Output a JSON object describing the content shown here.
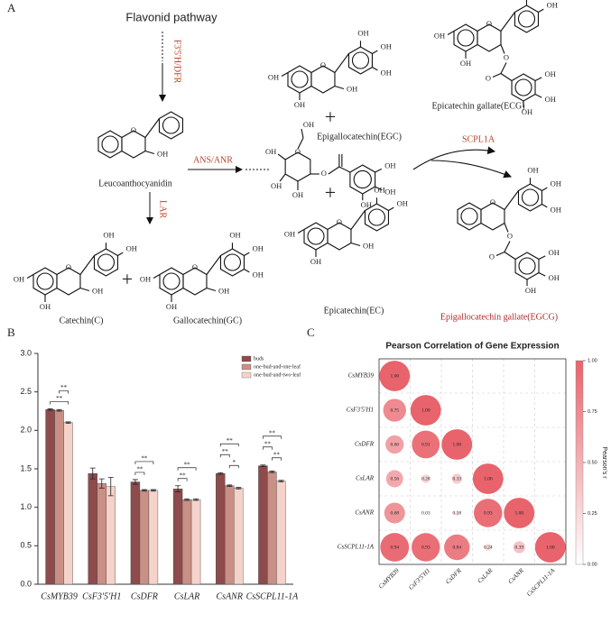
{
  "panel_a": {
    "label": "A",
    "title": "Flavonid pathway",
    "enzymes": {
      "f35h_dfr": "F3'5'H/DFR",
      "ans_anr": "ANS/ANR",
      "lar": "LAR",
      "scpl": "SCPL1A"
    },
    "compounds": {
      "leuco": "Leucoanthocyanidin",
      "c": "Catechin(C)",
      "gc": "Gallocatechin(GC)",
      "egc": "Epigallocatechin(EGC)",
      "ecg": "Epicatechin gallate(ECG)",
      "ec": "Epicatechin(EC)",
      "egcg": "Epigallocatechin gallate(EGCG)"
    },
    "plus": "+",
    "atoms": {
      "oh": "OH",
      "o": "O"
    }
  },
  "chart_data": [
    {
      "type": "bar",
      "panel_label": "B",
      "categories": [
        "CsMYB39",
        "CsF3'5'H1",
        "CsDFR",
        "CsLAR",
        "CsANR",
        "CsSCPL11-1A"
      ],
      "series": [
        {
          "name": "buds",
          "color": "#8e4b4b",
          "values": [
            2.27,
            1.44,
            1.33,
            1.24,
            1.44,
            1.54
          ],
          "errors": [
            0.01,
            0.07,
            0.03,
            0.04,
            0.01,
            0.01
          ]
        },
        {
          "name": "one-bud-and-one-leaf",
          "color": "#c99086",
          "values": [
            2.26,
            1.31,
            1.22,
            1.1,
            1.28,
            1.46
          ],
          "errors": [
            0.01,
            0.06,
            0.01,
            0.01,
            0.01,
            0.01
          ]
        },
        {
          "name": "one-bud-and-two-leaf",
          "color": "#f5d3ca",
          "values": [
            2.1,
            1.27,
            1.22,
            1.1,
            1.25,
            1.34
          ],
          "errors": [
            0.01,
            0.12,
            0.01,
            0.01,
            0.01,
            0.01
          ]
        }
      ],
      "ylim": [
        0,
        3.0
      ],
      "yticks": [
        {
          "value": 0,
          "label": "0.0"
        },
        0.5,
        {
          "value": 1,
          "label": "1.0"
        },
        1.5,
        {
          "value": 2,
          "label": "2.0"
        },
        2.5,
        {
          "value": 3,
          "label": "3.0"
        }
      ],
      "legend": "upper right",
      "annotations": [
        {
          "category": "CsMYB39",
          "from": "buds",
          "to": "one-bud-and-two-leaf",
          "text": "**"
        },
        {
          "category": "CsMYB39",
          "from": "one-bud-and-one-leaf",
          "to": "one-bud-and-two-leaf",
          "text": "**"
        },
        {
          "category": "CsDFR",
          "from": "buds",
          "to": "one-bud-and-one-leaf",
          "text": "**"
        },
        {
          "category": "CsDFR",
          "from": "buds",
          "to": "one-bud-and-two-leaf",
          "text": "**"
        },
        {
          "category": "CsLAR",
          "from": "buds",
          "to": "one-bud-and-one-leaf",
          "text": "**"
        },
        {
          "category": "CsLAR",
          "from": "buds",
          "to": "one-bud-and-two-leaf",
          "text": "**"
        },
        {
          "category": "CsANR",
          "from": "one-bud-and-one-leaf",
          "to": "one-bud-and-two-leaf",
          "text": "*"
        },
        {
          "category": "CsANR",
          "from": "buds",
          "to": "one-bud-and-one-leaf",
          "text": "**"
        },
        {
          "category": "CsANR",
          "from": "buds",
          "to": "one-bud-and-two-leaf",
          "text": "**"
        },
        {
          "category": "CsSCPL11-1A",
          "from": "one-bud-and-one-leaf",
          "to": "one-bud-and-two-leaf",
          "text": "**"
        },
        {
          "category": "CsSCPL11-1A",
          "from": "buds",
          "to": "one-bud-and-one-leaf",
          "text": "**"
        },
        {
          "category": "CsSCPL11-1A",
          "from": "buds",
          "to": "one-bud-and-two-leaf",
          "text": "**"
        }
      ]
    },
    {
      "type": "correlation",
      "panel_label": "C",
      "title": "Pearson Correlation of Gene Expression",
      "categories": [
        "CsMYB39",
        "CsF3'5'H1",
        "CsDFR",
        "CsLAR",
        "CsANR",
        "CsSCPL11-1A"
      ],
      "values": [
        [
          1.0
        ],
        [
          0.75,
          1.0
        ],
        [
          0.6,
          0.91,
          1.0
        ],
        [
          0.56,
          0.28,
          0.33,
          1.0
        ],
        [
          0.68,
          0.03,
          0.18,
          0.93,
          1.0
        ],
        [
          0.94,
          0.93,
          0.84,
          0.24,
          0.39,
          1.0
        ]
      ],
      "value_labels": [
        [
          "1.00"
        ],
        [
          "0.75",
          "1.00"
        ],
        [
          "0.60",
          "0.91",
          "1.00"
        ],
        [
          "0.56",
          "0.28",
          "0.33",
          "1.00"
        ],
        [
          "0.68",
          "0.03",
          "0.18",
          "0.93",
          "1.00"
        ],
        [
          "0.94",
          "0.93",
          "0.84",
          "0.24",
          "0.39",
          "1.00"
        ]
      ],
      "colormap": [
        "#ffffff",
        "#e8636b"
      ],
      "clim": [
        0,
        1
      ],
      "cticks": [
        {
          "value": 0,
          "label": "0.00"
        },
        0.25,
        {
          "value": 0.5,
          "label": "0.50"
        },
        0.75,
        {
          "value": 1,
          "label": "1.00"
        }
      ],
      "colorbar_label": "Pearson's r",
      "grid": true
    }
  ]
}
